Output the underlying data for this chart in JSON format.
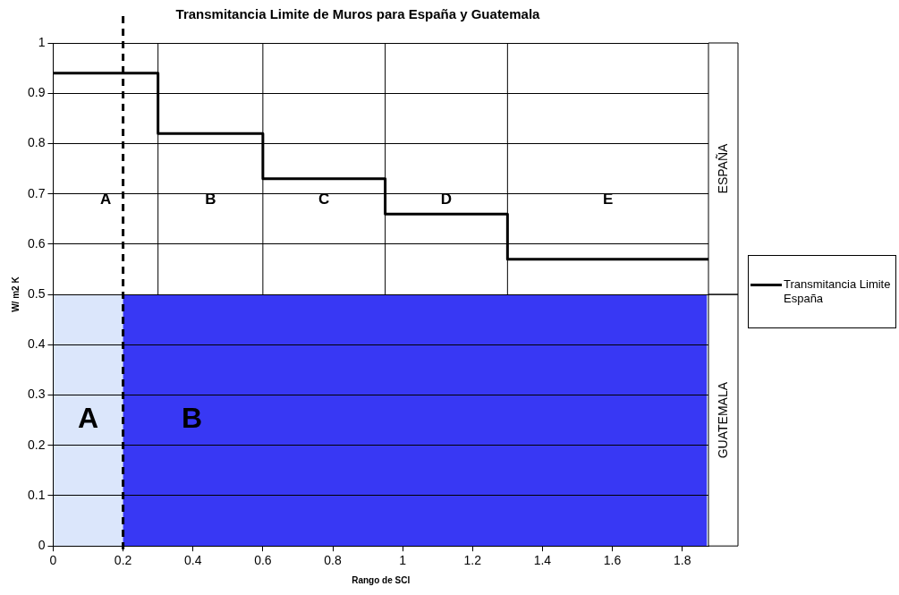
{
  "chart_data": {
    "type": "step",
    "title": "Transmitancia Limite de Muros para España y Guatemala",
    "xlabel": "Rango de SCI",
    "ylabel": "W/ m2 K",
    "series": [
      {
        "name": "Transmitancia Limite España",
        "color": "#000000",
        "x": [
          0,
          0.3,
          0.6,
          0.95,
          1.3,
          1.875
        ],
        "values": [
          0.94,
          0.82,
          0.73,
          0.66,
          0.57,
          0.57
        ]
      }
    ],
    "xlim": [
      0,
      1.875
    ],
    "xticks": [
      0,
      0.2,
      0.4,
      0.6,
      0.8,
      1,
      1.2,
      1.4,
      1.6,
      1.8
    ],
    "ylim": [
      0,
      1
    ],
    "yticks": [
      0,
      0.1,
      0.2,
      0.3,
      0.4,
      0.5,
      0.6,
      0.7,
      0.8,
      0.9,
      1
    ],
    "grid": "y",
    "legend": "right",
    "line_style": "solid",
    "marker": "none",
    "bands": [
      {
        "axis": "y",
        "from": 0,
        "to": 0.5,
        "label": "GUATEMALA",
        "color": "#dbe6fb"
      },
      {
        "axis": "x",
        "from": 0.2,
        "to": 1.87,
        "label": "B",
        "color": "#3838f4"
      }
    ],
    "ref_lines": [
      {
        "axis": "x",
        "value": 0.2,
        "line_style": "dashed"
      },
      {
        "axis": "x",
        "value": 0.3,
        "line_style": "solid"
      },
      {
        "axis": "x",
        "value": 0.6,
        "line_style": "solid"
      },
      {
        "axis": "x",
        "value": 0.95,
        "line_style": "solid"
      },
      {
        "axis": "x",
        "value": 1.3,
        "line_style": "solid"
      }
    ],
    "annotations": [
      "ESPAÑA",
      "A",
      "B",
      "C",
      "D",
      "E",
      "A"
    ]
  }
}
